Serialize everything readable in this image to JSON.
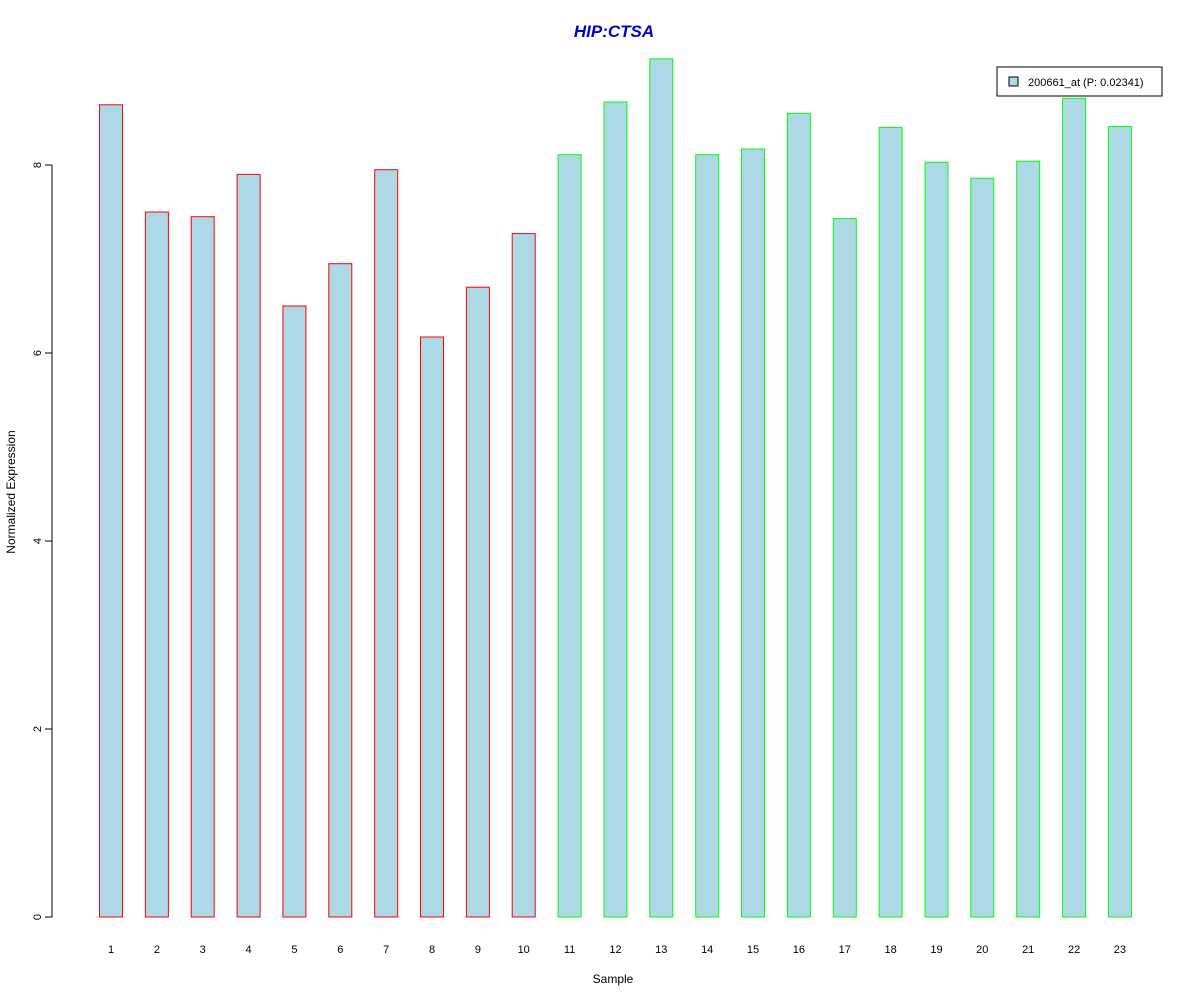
{
  "chart_data": {
    "type": "bar",
    "title": "HIP:CTSA",
    "title_color": "#0000CC",
    "xlabel": "Sample",
    "ylabel": "Normalized Expression",
    "ylim": [
      0,
      9.1
    ],
    "yticks": [
      0,
      2,
      4,
      6,
      8
    ],
    "grid": false,
    "legend_position": "top-right",
    "categories": [
      "1",
      "2",
      "3",
      "4",
      "5",
      "6",
      "7",
      "8",
      "9",
      "10",
      "11",
      "12",
      "13",
      "14",
      "15",
      "16",
      "17",
      "18",
      "19",
      "20",
      "21",
      "22",
      "23"
    ],
    "series": [
      {
        "name": "200661_at (P: 0.02341)",
        "fill_color": "#ADD8E6",
        "values": [
          8.64,
          7.5,
          7.45,
          7.9,
          6.5,
          6.95,
          7.95,
          6.17,
          6.7,
          7.27,
          8.11,
          8.67,
          9.13,
          8.11,
          8.17,
          8.55,
          7.43,
          8.4,
          8.03,
          7.86,
          8.04,
          8.71,
          8.41
        ],
        "border_colors": [
          "#FF0000",
          "#FF0000",
          "#FF0000",
          "#FF0000",
          "#FF0000",
          "#FF0000",
          "#FF0000",
          "#FF0000",
          "#FF0000",
          "#FF0000",
          "#00FF00",
          "#00FF00",
          "#00FF00",
          "#00FF00",
          "#00FF00",
          "#00FF00",
          "#00FF00",
          "#00FF00",
          "#00FF00",
          "#00FF00",
          "#00FF00",
          "#00FF00",
          "#00FF00"
        ]
      }
    ]
  }
}
